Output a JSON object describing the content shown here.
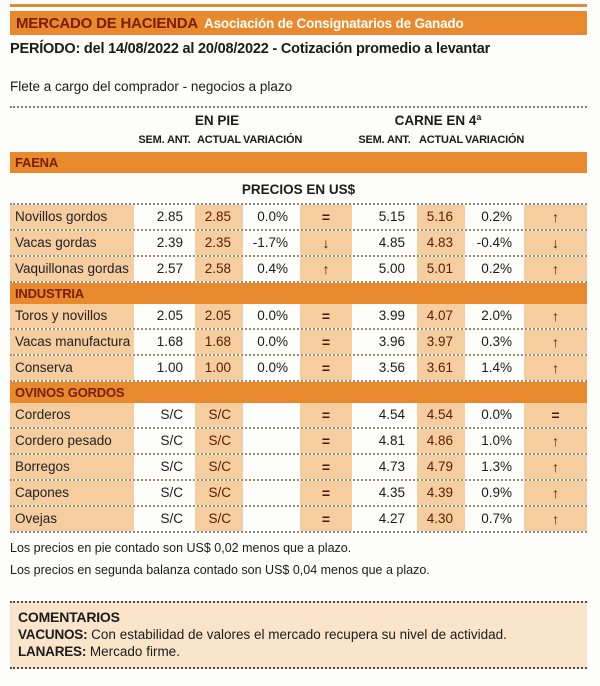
{
  "colors": {
    "accent_orange": "#E8892E",
    "stripe_peach": "#F6CD9F",
    "comments_bg": "#FAE5CB",
    "maroon_text": "#7A1D03",
    "actual_value_text": "#5C1A05"
  },
  "header": {
    "title": "MERCADO DE HACIENDA",
    "subtitle": "Asociación de Consignatarios de Ganado",
    "period": "PERÍODO: del 14/08/2022 al 20/08/2022 - Cotización promedio a levantar",
    "shipping_note": "Flete a cargo del comprador - negocios a plazo"
  },
  "table": {
    "group_headers": {
      "pie": "EN PIE",
      "carne": "CARNE EN 4ª"
    },
    "col_headers": {
      "sem_ant": "SEM. ANT.",
      "actual": "ACTUAL",
      "variacion": "VARIACIÓN"
    },
    "price_note": "PRECIOS EN US$",
    "sections": [
      {
        "name": "FAENA",
        "rows": [
          {
            "label": "Novillos gordos",
            "pie": [
              "2.85",
              "2.85",
              "0.0%",
              "="
            ],
            "carne": [
              "5.15",
              "5.16",
              "0.2%",
              "↑"
            ]
          },
          {
            "label": "Vacas gordas",
            "pie": [
              "2.39",
              "2.35",
              "-1.7%",
              "↓"
            ],
            "carne": [
              "4.85",
              "4.83",
              "-0.4%",
              "↓"
            ]
          },
          {
            "label": "Vaquillonas gordas",
            "pie": [
              "2.57",
              "2.58",
              "0.4%",
              "↑"
            ],
            "carne": [
              "5.00",
              "5.01",
              "0.2%",
              "↑"
            ]
          }
        ]
      },
      {
        "name": "INDUSTRIA",
        "rows": [
          {
            "label": "Toros y novillos",
            "pie": [
              "2.05",
              "2.05",
              "0.0%",
              "="
            ],
            "carne": [
              "3.99",
              "4.07",
              "2.0%",
              "↑"
            ]
          },
          {
            "label": "Vacas manufactura",
            "pie": [
              "1.68",
              "1.68",
              "0.0%",
              "="
            ],
            "carne": [
              "3.96",
              "3.97",
              "0.3%",
              "↑"
            ]
          },
          {
            "label": "Conserva",
            "pie": [
              "1.00",
              "1.00",
              "0.0%",
              "="
            ],
            "carne": [
              "3.56",
              "3.61",
              "1.4%",
              "↑"
            ]
          }
        ]
      },
      {
        "name": "OVINOS GORDOS",
        "rows": [
          {
            "label": "Corderos",
            "pie": [
              "S/C",
              "S/C",
              "",
              "="
            ],
            "carne": [
              "4.54",
              "4.54",
              "0.0%",
              "="
            ]
          },
          {
            "label": "Cordero pesado",
            "pie": [
              "S/C",
              "S/C",
              "",
              "="
            ],
            "carne": [
              "4.81",
              "4.86",
              "1.0%",
              "↑"
            ]
          },
          {
            "label": "Borregos",
            "pie": [
              "S/C",
              "S/C",
              "",
              "="
            ],
            "carne": [
              "4.73",
              "4.79",
              "1.3%",
              "↑"
            ]
          },
          {
            "label": "Capones",
            "pie": [
              "S/C",
              "S/C",
              "",
              "="
            ],
            "carne": [
              "4.35",
              "4.39",
              "0.9%",
              "↑"
            ]
          },
          {
            "label": "Ovejas",
            "pie": [
              "S/C",
              "S/C",
              "",
              "="
            ],
            "carne": [
              "4.27",
              "4.30",
              "0.7%",
              "↑"
            ]
          }
        ]
      }
    ]
  },
  "footnotes": [
    "Los precios en pie contado son US$ 0,02 menos que a plazo.",
    "Los precios en segunda balanza contado son US$ 0,04 menos que a plazo."
  ],
  "comments": {
    "title": "COMENTARIOS",
    "items": [
      {
        "label": "VACUNOS:",
        "text": "Con estabilidad de valores el mercado recupera su nivel de actividad."
      },
      {
        "label": "LANARES:",
        "text": "Mercado firme."
      }
    ]
  }
}
